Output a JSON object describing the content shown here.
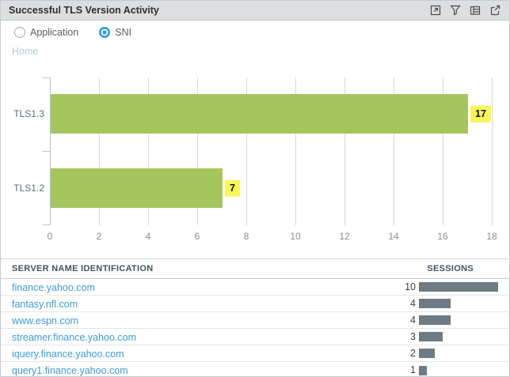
{
  "widget": {
    "title": "Successful TLS Version Activity",
    "toolbar_icons": [
      "maximize-icon",
      "filter-icon",
      "table-view-icon",
      "export-icon"
    ]
  },
  "controls": {
    "radios": [
      {
        "label": "Application",
        "selected": false
      },
      {
        "label": "SNI",
        "selected": true
      }
    ]
  },
  "breadcrumb": {
    "home_label": "Home"
  },
  "chart_data": {
    "type": "bar",
    "orientation": "horizontal",
    "title": "",
    "categories": [
      "TLS1.3",
      "TLS1.2"
    ],
    "values": [
      17,
      7
    ],
    "xticks": [
      0,
      2,
      4,
      6,
      8,
      10,
      12,
      14,
      16,
      18
    ],
    "xlim": [
      0,
      18
    ],
    "grid": true,
    "bar_color": "#a5c55d",
    "value_label_bg": "#f9f559"
  },
  "table": {
    "columns": {
      "name": "SERVER NAME IDENTIFICATION",
      "sessions": "SESSIONS"
    },
    "rows": [
      {
        "name": "finance.yahoo.com",
        "sessions": 10
      },
      {
        "name": "fantasy.nfl.com",
        "sessions": 4
      },
      {
        "name": "www.espn.com",
        "sessions": 4
      },
      {
        "name": "streamer.finance.yahoo.com",
        "sessions": 3
      },
      {
        "name": "iquery.finance.yahoo.com",
        "sessions": 2
      },
      {
        "name": "query1.finance.yahoo.com",
        "sessions": 1
      }
    ],
    "session_bar_color": "#6e7b85",
    "link_color": "#3d9bd5"
  }
}
